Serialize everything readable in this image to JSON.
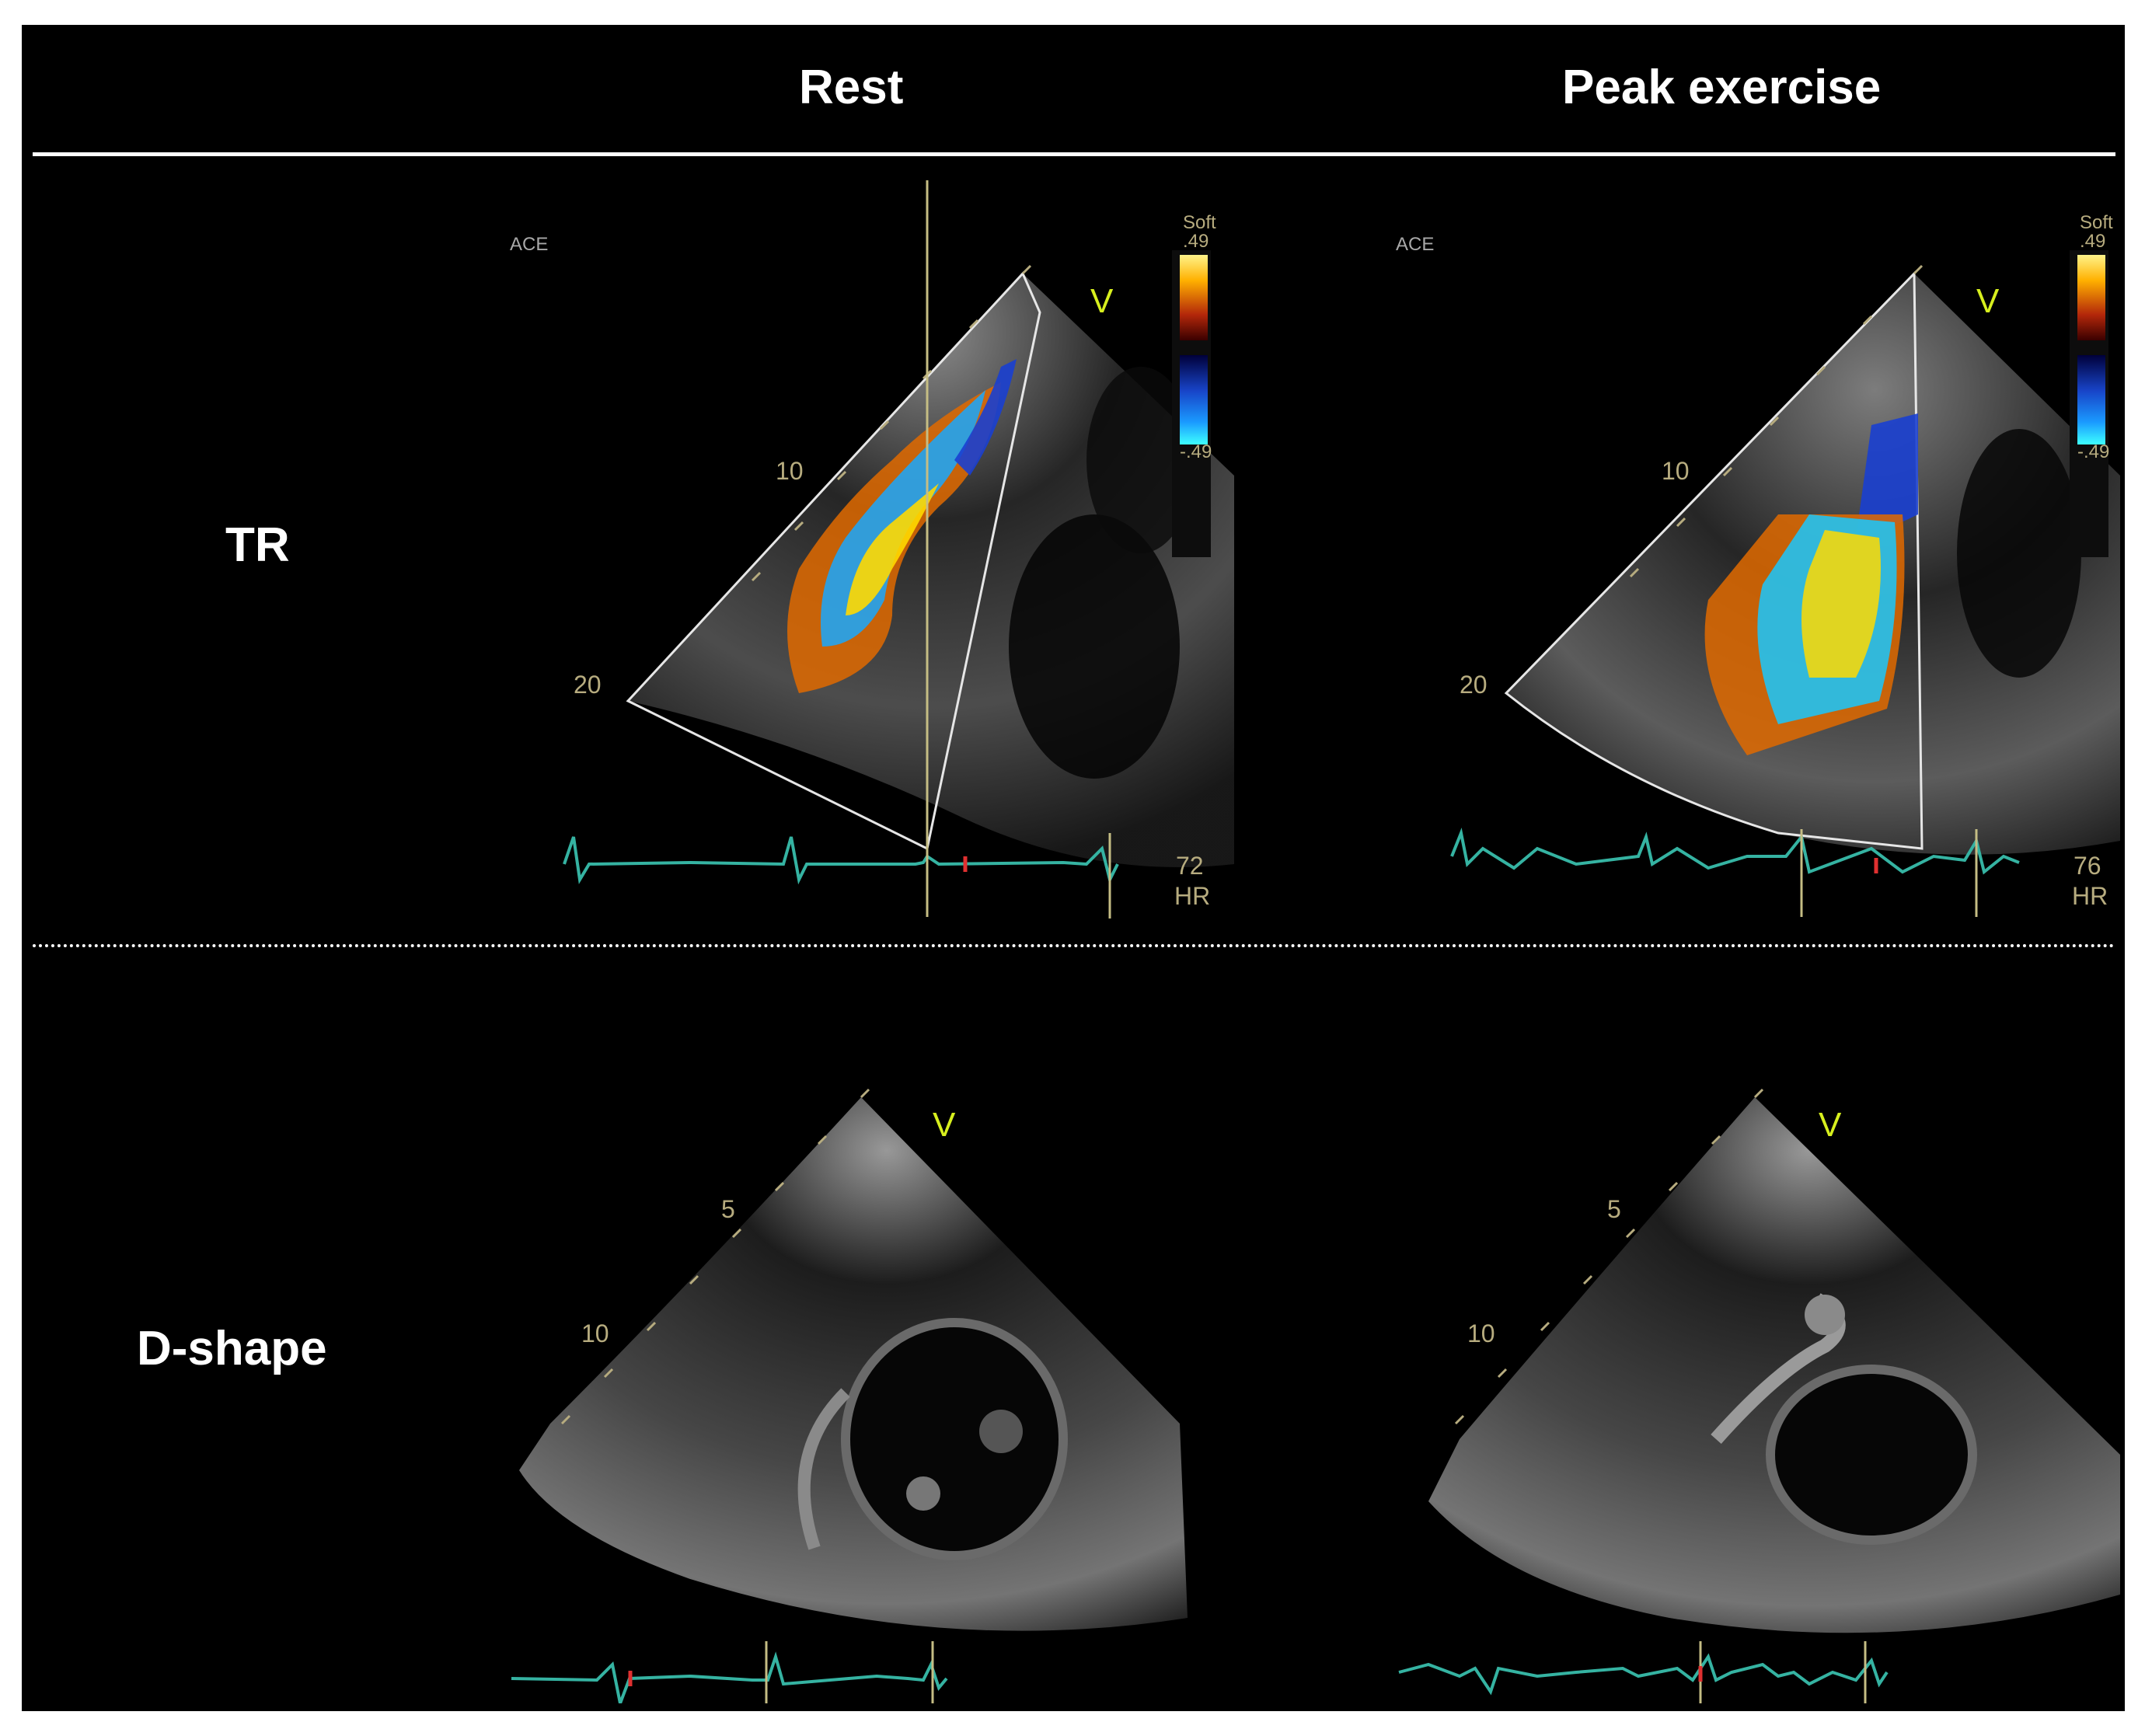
{
  "headers": {
    "rest": "Rest",
    "peak": "Peak exercise"
  },
  "rows": {
    "tr": "TR",
    "dshape": "D-shape"
  },
  "panels": {
    "tr_rest": {
      "ace": "ACE",
      "depth_a": "10",
      "depth_b": "20",
      "marker": "V",
      "scale_title": "Soft",
      "scale_top": ".49",
      "scale_bottom": "-.49",
      "hr_value": "72",
      "hr_label": "HR"
    },
    "tr_peak": {
      "ace": "ACE",
      "depth_a": "10",
      "depth_b": "20",
      "marker": "V",
      "scale_title": "Soft",
      "scale_top": ".49",
      "scale_bottom": "-.49",
      "hr_value": "76",
      "hr_label": "HR"
    },
    "d_rest": {
      "depth_a": "5",
      "depth_b": "10",
      "marker": "V"
    },
    "d_peak": {
      "depth_a": "5",
      "depth_b": "10",
      "marker": "V"
    }
  },
  "colors": {
    "ecg": "#35b3a2",
    "annotation": "#b7ac7f",
    "marker": "#d7ef1e"
  }
}
